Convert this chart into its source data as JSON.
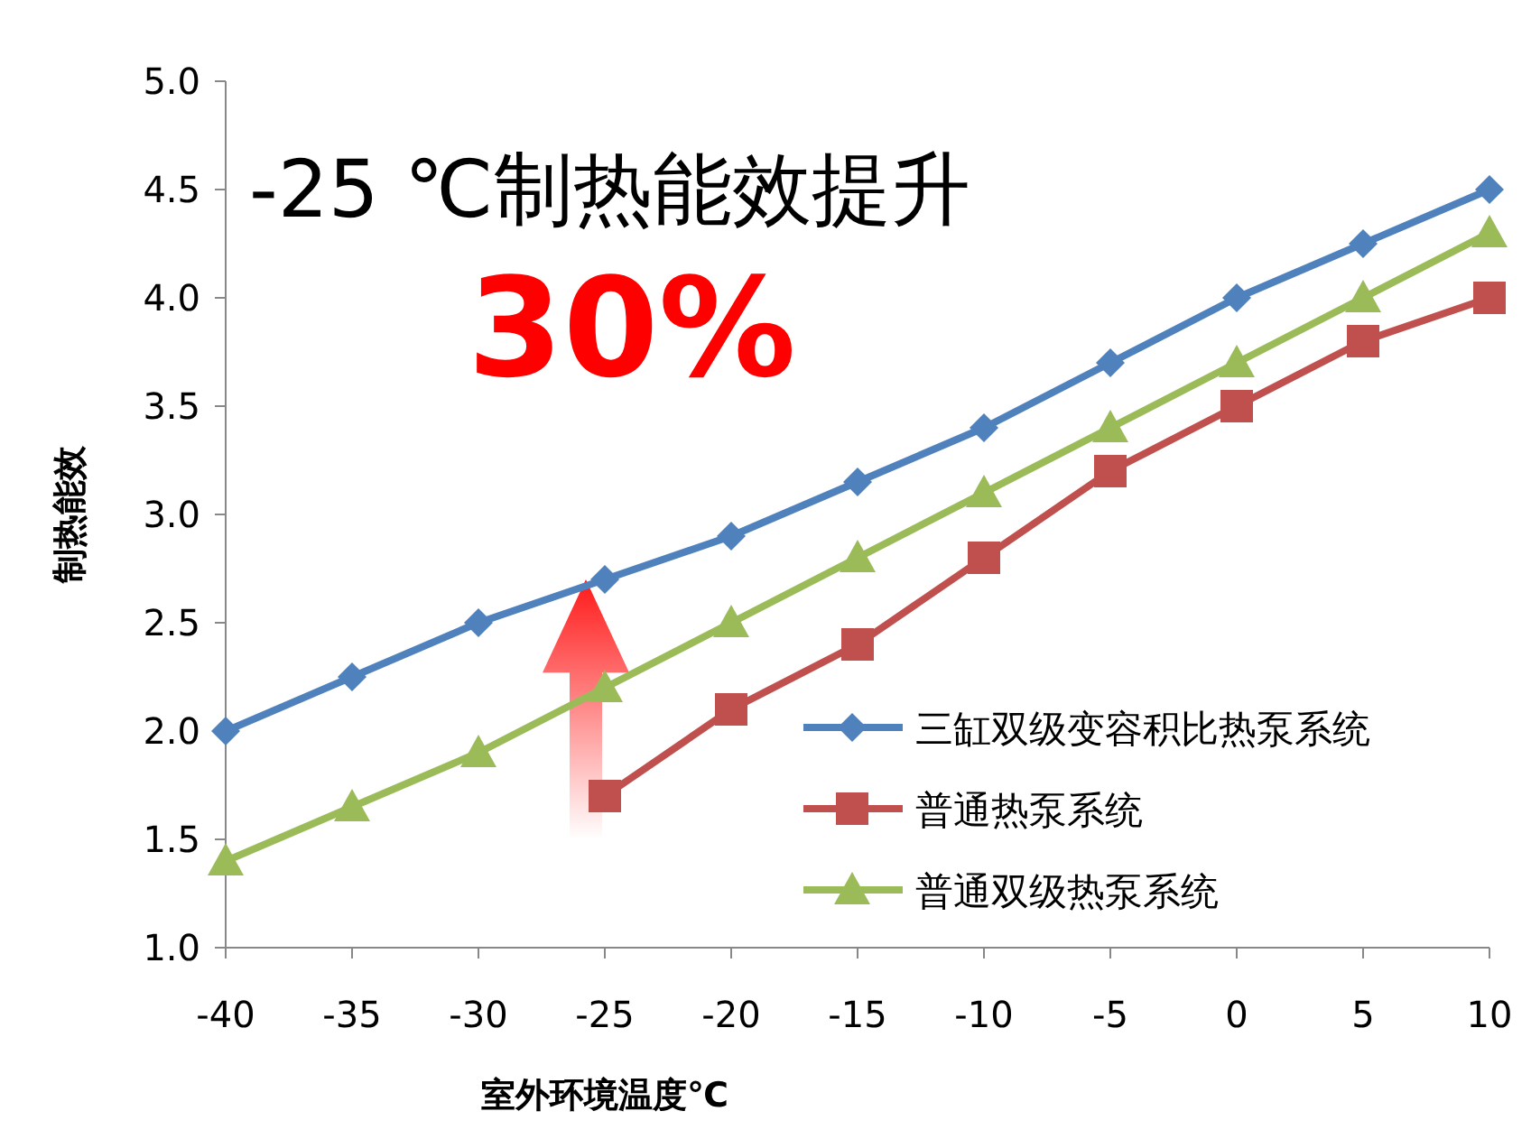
{
  "chart_data": {
    "type": "line",
    "xlabel": "室外环境温度℃",
    "ylabel": "制热能效",
    "categories": [
      "-40",
      "-35",
      "-30",
      "-25",
      "-20",
      "-15",
      "-10",
      "-5",
      "0",
      "5",
      "10"
    ],
    "ylim": [
      1.0,
      5.0
    ],
    "yticks": [
      {
        "value": 1,
        "label": "1.0"
      },
      {
        "value": 1.5,
        "label": "1.5"
      },
      {
        "value": 2,
        "label": "2.0"
      },
      {
        "value": 2.5,
        "label": "2.5"
      },
      {
        "value": 3,
        "label": "3.0"
      },
      {
        "value": 3.5,
        "label": "3.5"
      },
      {
        "value": 4,
        "label": "4.0"
      },
      {
        "value": 4.5,
        "label": "4.5"
      },
      {
        "value": 5,
        "label": "5.0"
      }
    ],
    "series": [
      {
        "name": "三缸双级变容积比热泵系统",
        "color": "#4f81bd",
        "marker": "diamond",
        "values": [
          2.0,
          2.25,
          2.5,
          2.7,
          2.9,
          3.15,
          3.4,
          3.7,
          4.0,
          4.25,
          4.5
        ]
      },
      {
        "name": "普通热泵系统",
        "color": "#c0504d",
        "marker": "square",
        "values": [
          null,
          null,
          null,
          1.7,
          2.1,
          2.4,
          2.8,
          3.2,
          3.5,
          3.8,
          4.0
        ]
      },
      {
        "name": "普通双级热泵系统",
        "color": "#9bbb59",
        "marker": "triangle",
        "values": [
          1.4,
          1.65,
          1.9,
          2.2,
          2.5,
          2.8,
          3.1,
          3.4,
          3.7,
          4.0,
          4.3
        ]
      }
    ],
    "annotations": [
      "-25 ℃制热能效提升",
      "30%"
    ],
    "legend": "right",
    "grid": false
  }
}
